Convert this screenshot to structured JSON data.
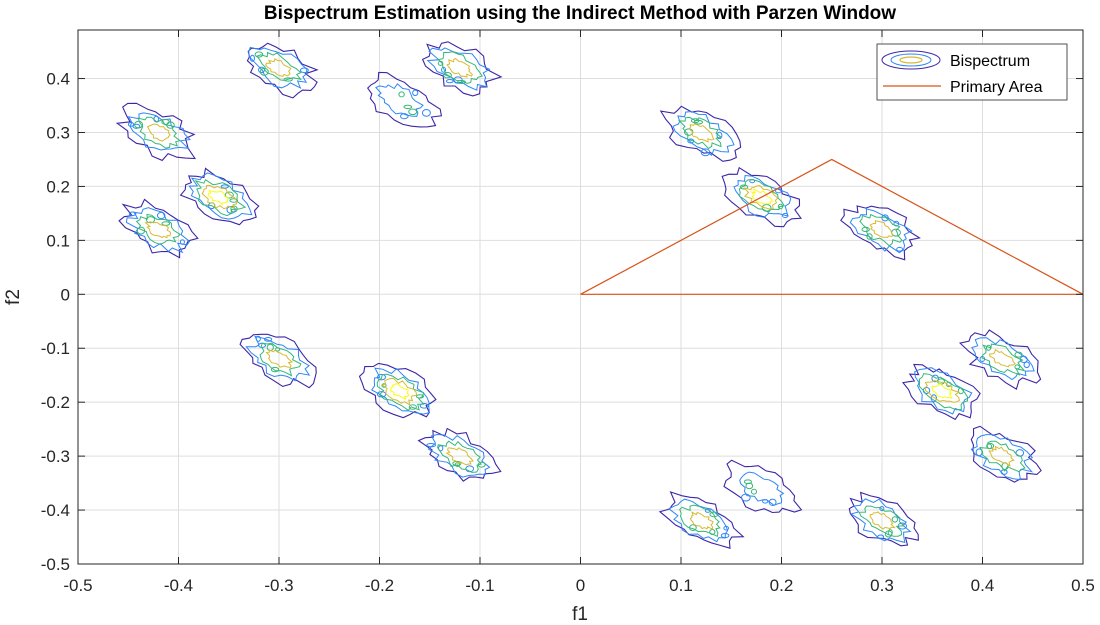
{
  "chart_data": {
    "type": "contour",
    "title": "Bispectrum Estimation using the Indirect Method with Parzen Window",
    "xlabel": "f1",
    "ylabel": "f2",
    "xlim": [
      -0.5,
      0.5
    ],
    "ylim": [
      -0.5,
      0.49
    ],
    "xticks": [
      -0.5,
      -0.4,
      -0.3,
      -0.2,
      -0.1,
      0,
      0.1,
      0.2,
      0.3,
      0.4,
      0.5
    ],
    "xtick_labels": [
      "-0.5",
      "-0.4",
      "-0.3",
      "-0.2",
      "-0.1",
      "0",
      "0.1",
      "0.2",
      "0.3",
      "0.4",
      "0.5"
    ],
    "yticks": [
      -0.5,
      -0.4,
      -0.3,
      -0.2,
      -0.1,
      0,
      0.1,
      0.2,
      0.3,
      0.4
    ],
    "ytick_labels": [
      "-0.5",
      "-0.4",
      "-0.3",
      "-0.2",
      "-0.1",
      "0",
      "0.1",
      "0.2",
      "0.3",
      "0.4"
    ],
    "grid": true,
    "legend": {
      "location": "top-right",
      "entries": [
        {
          "label": "Bispectrum",
          "kind": "contour"
        },
        {
          "label": "Primary Area",
          "kind": "line",
          "color": "#d95319"
        }
      ]
    },
    "contour_colors": [
      "#3e26a8",
      "#2e87f7",
      "#35b778",
      "#d7ba31",
      "#f9fb15"
    ],
    "contour_peaks": [
      {
        "f1": -0.42,
        "f2": 0.3,
        "level": 4
      },
      {
        "f1": -0.3,
        "f2": 0.42,
        "level": 4
      },
      {
        "f1": -0.12,
        "f2": 0.42,
        "level": 4
      },
      {
        "f1": -0.18,
        "f2": 0.36,
        "level": 2
      },
      {
        "f1": -0.36,
        "f2": 0.18,
        "level": 5
      },
      {
        "f1": -0.42,
        "f2": 0.12,
        "level": 4
      },
      {
        "f1": 0.12,
        "f2": 0.3,
        "level": 4
      },
      {
        "f1": 0.18,
        "f2": 0.18,
        "level": 5
      },
      {
        "f1": 0.3,
        "f2": 0.12,
        "level": 4
      },
      {
        "f1": -0.3,
        "f2": -0.12,
        "level": 4
      },
      {
        "f1": -0.18,
        "f2": -0.18,
        "level": 5
      },
      {
        "f1": -0.12,
        "f2": -0.3,
        "level": 4
      },
      {
        "f1": 0.42,
        "f2": -0.12,
        "level": 4
      },
      {
        "f1": 0.36,
        "f2": -0.18,
        "level": 5
      },
      {
        "f1": 0.42,
        "f2": -0.3,
        "level": 4
      },
      {
        "f1": 0.18,
        "f2": -0.36,
        "level": 2
      },
      {
        "f1": 0.12,
        "f2": -0.42,
        "level": 4
      },
      {
        "f1": 0.3,
        "f2": -0.42,
        "level": 4
      }
    ],
    "primary_area": {
      "label": "Primary Area",
      "color": "#d95319",
      "vertices": [
        [
          0,
          0
        ],
        [
          0.25,
          0.25
        ],
        [
          0.5,
          0
        ],
        [
          0,
          0
        ]
      ]
    }
  }
}
